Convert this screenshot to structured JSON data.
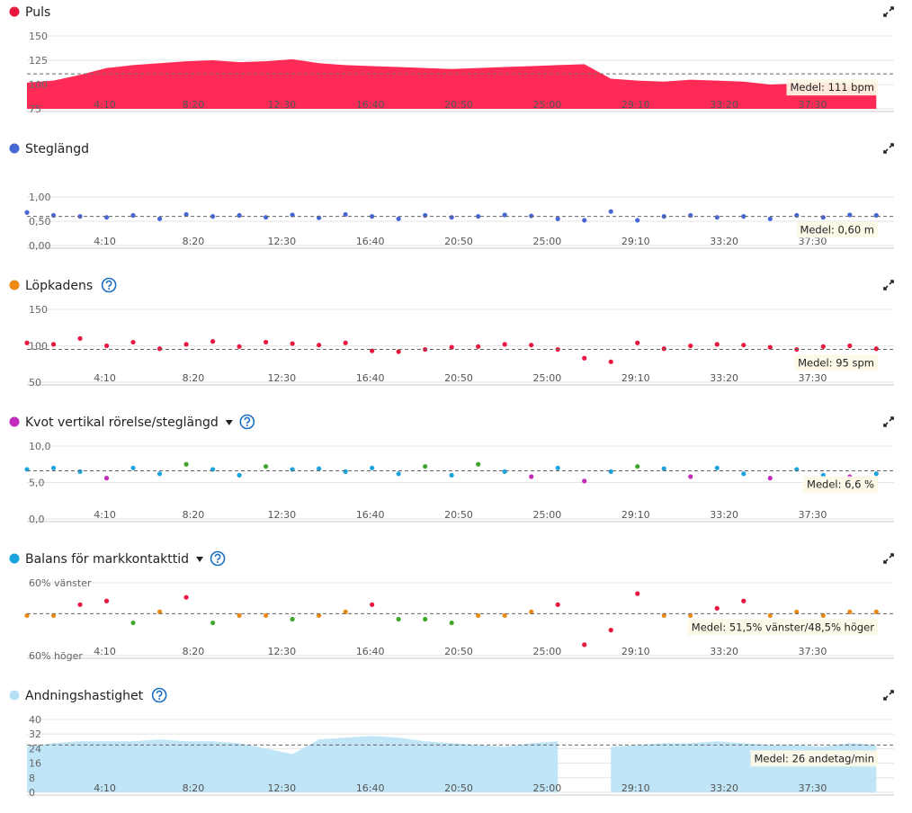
{
  "chart_data": [
    {
      "type": "area",
      "title": "Puls",
      "color": "#ff2a56",
      "legend_color": "#e8173f",
      "x": [
        30,
        105,
        180,
        255,
        330,
        405,
        480,
        555,
        630,
        705,
        780,
        855,
        930,
        1005,
        1080,
        1155,
        1230,
        1305,
        1380,
        1455,
        1530,
        1605,
        1680,
        1755,
        1830,
        1905,
        1980,
        2055,
        2130,
        2205,
        2280,
        2355,
        2430
      ],
      "values": [
        102,
        104,
        110,
        117,
        120,
        122,
        124,
        125,
        123,
        124,
        126,
        122,
        120,
        119,
        118,
        117,
        116,
        117,
        118,
        119,
        120,
        121,
        106,
        104,
        103,
        105,
        104,
        103,
        100,
        101,
        102,
        100,
        101
      ],
      "xlim": [
        30,
        2480
      ],
      "xticks": [
        {
          "value": 250,
          "label": "4:10"
        },
        {
          "value": 500,
          "label": "8:20"
        },
        {
          "value": 750,
          "label": "12:30"
        },
        {
          "value": 1000,
          "label": "16:40"
        },
        {
          "value": 1250,
          "label": "20:50"
        },
        {
          "value": 1500,
          "label": "25:00"
        },
        {
          "value": 1750,
          "label": "29:10"
        },
        {
          "value": 2000,
          "label": "33:20"
        },
        {
          "value": 2250,
          "label": "37:30"
        }
      ],
      "ylim": [
        75,
        150
      ],
      "yticks": [
        150,
        125,
        100,
        75
      ],
      "mean": 111,
      "annotation": "Medel: 111 bpm"
    },
    {
      "type": "scatter",
      "title": "Steglängd",
      "color": "#4867d6",
      "legend_color": "#4867d6",
      "x": [
        30,
        105,
        180,
        255,
        330,
        405,
        480,
        555,
        630,
        705,
        780,
        855,
        930,
        1005,
        1080,
        1155,
        1230,
        1305,
        1380,
        1455,
        1530,
        1605,
        1680,
        1755,
        1830,
        1905,
        1980,
        2055,
        2130,
        2205,
        2280,
        2355,
        2430
      ],
      "values": [
        0.68,
        0.62,
        0.6,
        0.58,
        0.62,
        0.55,
        0.64,
        0.6,
        0.62,
        0.58,
        0.63,
        0.57,
        0.64,
        0.6,
        0.55,
        0.62,
        0.58,
        0.6,
        0.63,
        0.61,
        0.55,
        0.52,
        0.7,
        0.52,
        0.6,
        0.62,
        0.58,
        0.6,
        0.55,
        0.62,
        0.58,
        0.63,
        0.62
      ],
      "xlim": [
        30,
        2480
      ],
      "xticks": [
        {
          "value": 250,
          "label": "4:10"
        },
        {
          "value": 500,
          "label": "8:20"
        },
        {
          "value": 750,
          "label": "12:30"
        },
        {
          "value": 1000,
          "label": "16:40"
        },
        {
          "value": 1250,
          "label": "20:50"
        },
        {
          "value": 1500,
          "label": "25:00"
        },
        {
          "value": 1750,
          "label": "29:10"
        },
        {
          "value": 2000,
          "label": "33:20"
        },
        {
          "value": 2250,
          "label": "37:30"
        }
      ],
      "ylim": [
        0,
        1.5
      ],
      "yticks": [
        {
          "value": 1,
          "label": "1,00"
        },
        {
          "value": 0.5,
          "label": "0,50"
        },
        {
          "value": 0,
          "label": "0,00"
        }
      ],
      "mean": 0.6,
      "annotation": "Medel: 0,60 m"
    },
    {
      "type": "scatter",
      "title": "Löpkadens",
      "help": true,
      "color": "#e8173f",
      "legend_color": "#ea8a12",
      "x": [
        30,
        105,
        180,
        255,
        330,
        405,
        480,
        555,
        630,
        705,
        780,
        855,
        930,
        1005,
        1080,
        1155,
        1230,
        1305,
        1380,
        1455,
        1530,
        1605,
        1680,
        1755,
        1830,
        1905,
        1980,
        2055,
        2130,
        2205,
        2280,
        2355,
        2430
      ],
      "values": [
        104,
        102,
        110,
        100,
        105,
        96,
        102,
        106,
        99,
        105,
        103,
        101,
        104,
        93,
        92,
        95,
        98,
        99,
        102,
        101,
        95,
        83,
        78,
        104,
        96,
        100,
        102,
        101,
        98,
        95,
        99,
        100,
        96
      ],
      "xlim": [
        30,
        2480
      ],
      "xticks": [
        {
          "value": 250,
          "label": "4:10"
        },
        {
          "value": 500,
          "label": "8:20"
        },
        {
          "value": 750,
          "label": "12:30"
        },
        {
          "value": 1000,
          "label": "16:40"
        },
        {
          "value": 1250,
          "label": "20:50"
        },
        {
          "value": 1500,
          "label": "25:00"
        },
        {
          "value": 1750,
          "label": "29:10"
        },
        {
          "value": 2000,
          "label": "33:20"
        },
        {
          "value": 2250,
          "label": "37:30"
        }
      ],
      "ylim": [
        50,
        150
      ],
      "yticks": [
        150,
        100,
        50
      ],
      "mean": 95,
      "annotation": "Medel: 95 spm"
    },
    {
      "type": "scatter",
      "title": "Kvot vertikal rörelse/steglängd",
      "dropdown": true,
      "help": true,
      "legend_color": "#c32bbc",
      "x": [
        30,
        105,
        180,
        255,
        330,
        405,
        480,
        555,
        630,
        705,
        780,
        855,
        930,
        1005,
        1080,
        1155,
        1230,
        1305,
        1380,
        1455,
        1530,
        1605,
        1680,
        1755,
        1830,
        1905,
        1980,
        2055,
        2130,
        2205,
        2280,
        2355,
        2430
      ],
      "values": [
        6.8,
        7.0,
        6.5,
        5.6,
        7.0,
        6.2,
        7.5,
        6.8,
        6.0,
        7.2,
        6.8,
        6.9,
        6.5,
        7.0,
        6.2,
        7.2,
        6.0,
        7.5,
        6.5,
        5.8,
        7.0,
        5.2,
        6.5,
        7.2,
        6.9,
        5.8,
        7.0,
        6.2,
        5.6,
        6.8,
        6.0,
        5.8,
        6.2
      ],
      "colors": [
        "#1ba4df",
        "#1ba4df",
        "#1ba4df",
        "#c32bbc",
        "#1ba4df",
        "#1ba4df",
        "#3fa62b",
        "#1ba4df",
        "#1ba4df",
        "#3fa62b",
        "#1ba4df",
        "#1ba4df",
        "#1ba4df",
        "#1ba4df",
        "#1ba4df",
        "#3fa62b",
        "#1ba4df",
        "#3fa62b",
        "#1ba4df",
        "#c32bbc",
        "#1ba4df",
        "#c32bbc",
        "#1ba4df",
        "#3fa62b",
        "#1ba4df",
        "#c32bbc",
        "#1ba4df",
        "#1ba4df",
        "#c32bbc",
        "#1ba4df",
        "#1ba4df",
        "#c32bbc",
        "#1ba4df"
      ],
      "xlim": [
        30,
        2480
      ],
      "xticks": [
        {
          "value": 250,
          "label": "4:10"
        },
        {
          "value": 500,
          "label": "8:20"
        },
        {
          "value": 750,
          "label": "12:30"
        },
        {
          "value": 1000,
          "label": "16:40"
        },
        {
          "value": 1250,
          "label": "20:50"
        },
        {
          "value": 1500,
          "label": "25:00"
        },
        {
          "value": 1750,
          "label": "29:10"
        },
        {
          "value": 2000,
          "label": "33:20"
        },
        {
          "value": 2250,
          "label": "37:30"
        }
      ],
      "ylim": [
        0,
        10
      ],
      "yticks": [
        {
          "value": 10,
          "label": "10,0"
        },
        {
          "value": 5,
          "label": "5,0"
        },
        {
          "value": 0,
          "label": "0,0"
        }
      ],
      "mean": 6.6,
      "annotation": "Medel: 6,6 %"
    },
    {
      "type": "scatter",
      "title": "Balans för markkontakttid",
      "dropdown": true,
      "help": true,
      "legend_color": "#1ba4df",
      "x": [
        30,
        105,
        180,
        255,
        330,
        405,
        480,
        555,
        630,
        705,
        780,
        855,
        930,
        1005,
        1080,
        1155,
        1230,
        1305,
        1380,
        1455,
        1530,
        1605,
        1680,
        1755,
        1830,
        1905,
        1980,
        2055,
        2130,
        2205,
        2280,
        2355,
        2430
      ],
      "values": [
        51,
        51,
        54,
        55,
        49,
        52,
        56,
        49,
        51,
        51,
        50,
        51,
        52,
        54,
        50,
        50,
        49,
        51,
        51,
        52,
        54,
        43,
        47,
        57,
        51,
        51,
        53,
        55,
        51,
        52,
        51,
        52,
        52
      ],
      "colors": [
        "#ea8a12",
        "#ea8a12",
        "#e8173f",
        "#e8173f",
        "#3fa62b",
        "#ea8a12",
        "#e8173f",
        "#3fa62b",
        "#ea8a12",
        "#ea8a12",
        "#3fa62b",
        "#ea8a12",
        "#ea8a12",
        "#e8173f",
        "#3fa62b",
        "#3fa62b",
        "#3fa62b",
        "#ea8a12",
        "#ea8a12",
        "#ea8a12",
        "#e8173f",
        "#e8173f",
        "#e8173f",
        "#e8173f",
        "#ea8a12",
        "#ea8a12",
        "#e8173f",
        "#e8173f",
        "#ea8a12",
        "#ea8a12",
        "#ea8a12",
        "#ea8a12",
        "#ea8a12"
      ],
      "xlim": [
        30,
        2480
      ],
      "xticks": [
        {
          "value": 250,
          "label": "4:10"
        },
        {
          "value": 500,
          "label": "8:20"
        },
        {
          "value": 750,
          "label": "12:30"
        },
        {
          "value": 1000,
          "label": "16:40"
        },
        {
          "value": 1250,
          "label": "20:50"
        },
        {
          "value": 1500,
          "label": "25:00"
        },
        {
          "value": 1750,
          "label": "29:10"
        },
        {
          "value": 2000,
          "label": "33:20"
        },
        {
          "value": 2250,
          "label": "37:30"
        }
      ],
      "ylim": [
        40,
        60
      ],
      "yticks": [
        {
          "value": 60,
          "label": "60% vänster"
        },
        {
          "value": 40,
          "label": "60% höger"
        }
      ],
      "mean": 51.5,
      "annotation": "Medel: 51,5% vänster/48,5% höger"
    },
    {
      "type": "area",
      "title": "Andningshastighet",
      "help": true,
      "color": "#bfe5f7",
      "legend_color": "#b7e1f5",
      "x": [
        30,
        105,
        180,
        255,
        330,
        405,
        480,
        555,
        630,
        705,
        780,
        855,
        930,
        1005,
        1080,
        1155,
        1230,
        1305,
        1380,
        1455,
        1530,
        1605,
        1680,
        1755,
        1830,
        1905,
        1980,
        2055,
        2130,
        2205,
        2280,
        2355,
        2430
      ],
      "values": [
        25,
        27,
        28,
        28,
        28,
        29,
        28,
        28,
        27,
        24,
        21,
        29,
        30,
        31,
        30,
        28,
        27,
        26,
        25,
        27,
        28,
        null,
        25,
        26,
        27,
        27,
        28,
        27,
        26,
        26,
        25,
        27,
        26
      ],
      "xlim": [
        30,
        2480
      ],
      "xticks": [
        {
          "value": 250,
          "label": "4:10"
        },
        {
          "value": 500,
          "label": "8:20"
        },
        {
          "value": 750,
          "label": "12:30"
        },
        {
          "value": 1000,
          "label": "16:40"
        },
        {
          "value": 1250,
          "label": "20:50"
        },
        {
          "value": 1500,
          "label": "25:00"
        },
        {
          "value": 1750,
          "label": "29:10"
        },
        {
          "value": 2000,
          "label": "33:20"
        },
        {
          "value": 2250,
          "label": "37:30"
        }
      ],
      "ylim": [
        0,
        40
      ],
      "yticks": [
        40,
        32,
        24,
        16,
        8,
        0
      ],
      "mean": 26,
      "annotation": "Medel: 26 andetag/min"
    }
  ]
}
